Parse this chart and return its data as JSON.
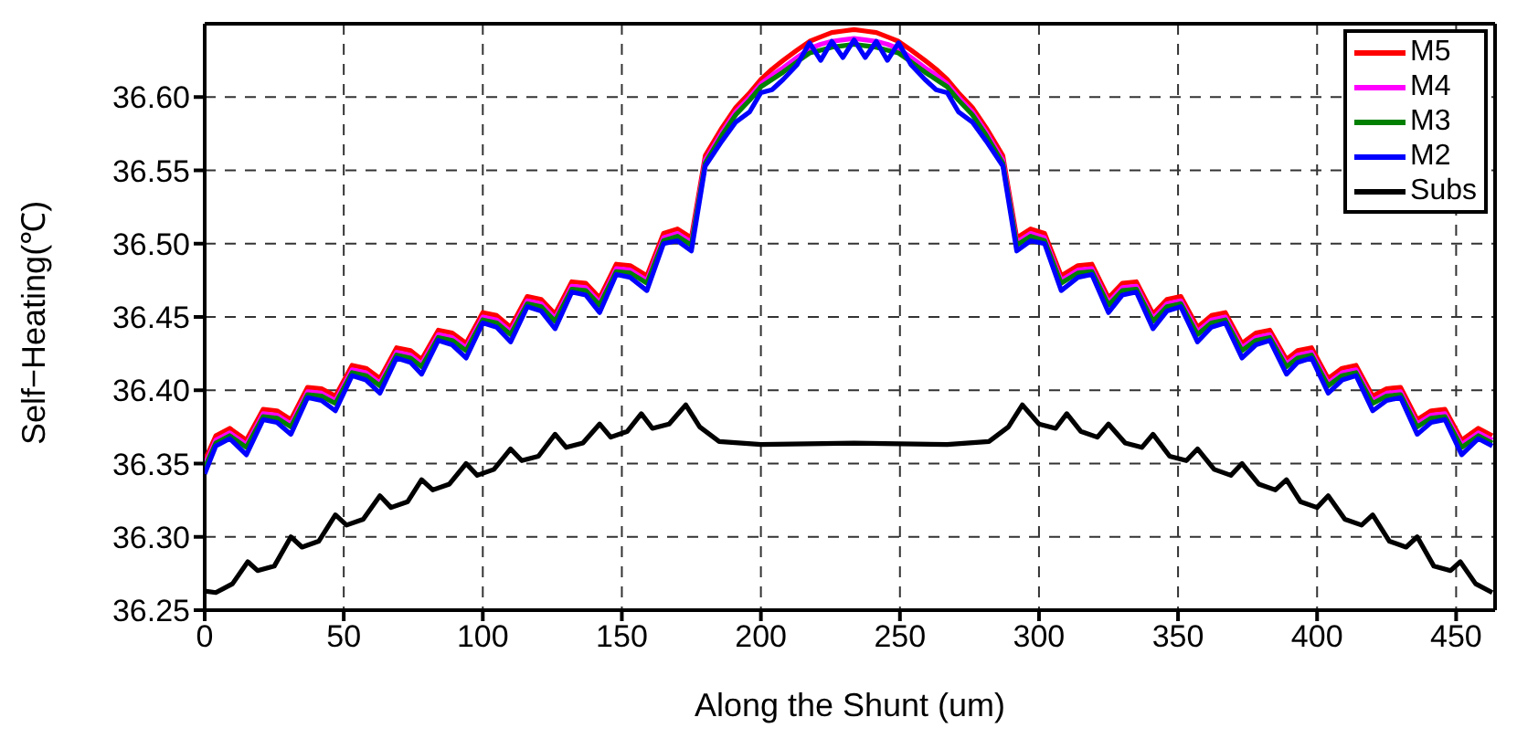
{
  "chart_data": {
    "type": "line",
    "xlabel": "Along the Shunt (um)",
    "ylabel": "Self−Heating(℃)",
    "xlim": [
      0,
      464
    ],
    "xticks": [
      0,
      50,
      100,
      150,
      200,
      250,
      300,
      350,
      400,
      450
    ],
    "ylim": [
      36.25,
      36.65
    ],
    "yticks": [
      36.25,
      {
        "value": 36.3,
        "label": "36.30"
      },
      36.35,
      {
        "value": 36.4,
        "label": "36.40"
      },
      36.45,
      {
        "value": 36.5,
        "label": "36.50"
      },
      36.55,
      {
        "value": 36.6,
        "label": "36.60"
      }
    ],
    "grid": true,
    "legend": "top right",
    "x": [
      0,
      4,
      9,
      15,
      21,
      26,
      31,
      37,
      42,
      47,
      53,
      58,
      63,
      69,
      74,
      78,
      84,
      89,
      94,
      100,
      105,
      110,
      116,
      121,
      126,
      132,
      137,
      142,
      148,
      153,
      159,
      165,
      170,
      175,
      180,
      186,
      191,
      196,
      200,
      204,
      208,
      213,
      217.5,
      221.5,
      225.5,
      229.5,
      233.5,
      237.5,
      241.5,
      245.5,
      249.5,
      254,
      259,
      263,
      267,
      271,
      276,
      281,
      287,
      292,
      297,
      302,
      308,
      314,
      319,
      325,
      330,
      335,
      341,
      346,
      351,
      357,
      362,
      367,
      373,
      378,
      383,
      389,
      393,
      398,
      404,
      409,
      414,
      420,
      425,
      430,
      436,
      441,
      446,
      452,
      458,
      463
    ],
    "series": [
      {
        "name": "M5",
        "color": "#ff0000",
        "values": [
          36.352,
          36.369,
          36.374,
          36.366,
          36.387,
          36.386,
          36.38,
          36.402,
          36.401,
          36.396,
          36.417,
          36.415,
          36.408,
          36.429,
          36.427,
          36.421,
          36.441,
          36.439,
          36.432,
          36.453,
          36.451,
          36.443,
          36.464,
          36.462,
          36.452,
          36.474,
          36.473,
          36.463,
          36.486,
          36.485,
          36.478,
          36.507,
          36.51,
          36.504,
          36.56,
          36.579,
          36.593,
          36.603,
          36.612,
          36.619,
          36.625,
          36.632,
          36.638,
          36.641,
          36.644,
          36.645,
          36.646,
          36.645,
          36.644,
          36.641,
          36.638,
          36.632,
          36.625,
          36.619,
          36.612,
          36.603,
          36.593,
          36.579,
          36.56,
          36.504,
          36.51,
          36.507,
          36.478,
          36.485,
          36.486,
          36.463,
          36.473,
          36.474,
          36.452,
          36.462,
          36.464,
          36.443,
          36.451,
          36.453,
          36.432,
          36.439,
          36.441,
          36.421,
          36.427,
          36.429,
          36.408,
          36.415,
          36.417,
          36.396,
          36.401,
          36.402,
          36.38,
          36.386,
          36.387,
          36.366,
          36.374,
          36.369
        ]
      },
      {
        "name": "M4",
        "color": "#ff00ff",
        "values": [
          36.349,
          36.366,
          36.371,
          36.363,
          36.384,
          36.383,
          36.377,
          36.399,
          36.398,
          36.393,
          36.414,
          36.412,
          36.405,
          36.426,
          36.424,
          36.418,
          36.438,
          36.436,
          36.429,
          36.45,
          36.448,
          36.44,
          36.461,
          36.459,
          36.449,
          36.471,
          36.47,
          36.46,
          36.483,
          36.482,
          36.475,
          36.504,
          36.507,
          36.501,
          36.557,
          36.576,
          36.59,
          36.6,
          36.609,
          36.615,
          36.62,
          36.627,
          36.633,
          36.636,
          36.638,
          36.639,
          36.64,
          36.639,
          36.638,
          36.636,
          36.633,
          36.627,
          36.62,
          36.615,
          36.609,
          36.6,
          36.59,
          36.576,
          36.557,
          36.501,
          36.507,
          36.504,
          36.475,
          36.482,
          36.483,
          36.46,
          36.47,
          36.471,
          36.449,
          36.459,
          36.461,
          36.44,
          36.448,
          36.45,
          36.429,
          36.436,
          36.438,
          36.418,
          36.424,
          36.426,
          36.405,
          36.412,
          36.414,
          36.393,
          36.398,
          36.399,
          36.377,
          36.383,
          36.384,
          36.363,
          36.371,
          36.366
        ]
      },
      {
        "name": "M3",
        "color": "#007f00",
        "values": [
          36.347,
          36.364,
          36.369,
          36.361,
          36.382,
          36.381,
          36.375,
          36.397,
          36.396,
          36.391,
          36.412,
          36.41,
          36.403,
          36.424,
          36.422,
          36.416,
          36.436,
          36.434,
          36.427,
          36.448,
          36.446,
          36.438,
          36.459,
          36.457,
          36.447,
          36.469,
          36.468,
          36.458,
          36.481,
          36.48,
          36.473,
          36.502,
          36.505,
          36.499,
          36.555,
          36.574,
          36.588,
          36.598,
          36.607,
          36.612,
          36.617,
          36.624,
          36.63,
          36.632,
          36.634,
          36.635,
          36.636,
          36.635,
          36.634,
          36.632,
          36.63,
          36.624,
          36.617,
          36.612,
          36.607,
          36.598,
          36.588,
          36.574,
          36.555,
          36.499,
          36.505,
          36.502,
          36.473,
          36.48,
          36.481,
          36.458,
          36.468,
          36.469,
          36.447,
          36.457,
          36.459,
          36.438,
          36.446,
          36.448,
          36.427,
          36.434,
          36.436,
          36.416,
          36.422,
          36.424,
          36.403,
          36.41,
          36.412,
          36.391,
          36.396,
          36.397,
          36.375,
          36.381,
          36.382,
          36.361,
          36.369,
          36.364
        ]
      },
      {
        "name": "M2",
        "color": "#0000ff",
        "values": [
          36.343,
          36.362,
          36.367,
          36.356,
          36.38,
          36.378,
          36.37,
          36.395,
          36.393,
          36.386,
          36.41,
          36.407,
          36.398,
          36.422,
          36.419,
          36.411,
          36.434,
          36.431,
          36.422,
          36.446,
          36.443,
          36.433,
          36.457,
          36.454,
          36.442,
          36.467,
          36.465,
          36.453,
          36.479,
          36.477,
          36.468,
          36.5,
          36.502,
          36.495,
          36.553,
          36.57,
          36.583,
          36.59,
          36.603,
          36.605,
          36.612,
          36.622,
          36.637,
          36.625,
          36.638,
          36.627,
          36.639,
          36.627,
          36.638,
          36.625,
          36.637,
          36.622,
          36.612,
          36.605,
          36.603,
          36.59,
          36.583,
          36.57,
          36.553,
          36.495,
          36.502,
          36.5,
          36.468,
          36.477,
          36.479,
          36.453,
          36.465,
          36.467,
          36.442,
          36.454,
          36.457,
          36.433,
          36.443,
          36.446,
          36.422,
          36.431,
          36.434,
          36.411,
          36.419,
          36.422,
          36.398,
          36.407,
          36.41,
          36.386,
          36.393,
          36.395,
          36.37,
          36.378,
          36.38,
          36.356,
          36.367,
          36.362
        ]
      },
      {
        "name": "Subs",
        "color": "#000000",
        "x": [
          0,
          4,
          10,
          15.5,
          19,
          25,
          31,
          35,
          41,
          47,
          51,
          57,
          63,
          67,
          73,
          78,
          82,
          88,
          94,
          98,
          104,
          110,
          114,
          120,
          126,
          130,
          136,
          142,
          146,
          152,
          157,
          161,
          167,
          173,
          178,
          185,
          200,
          233.5,
          267,
          282,
          289,
          294,
          300,
          306,
          310,
          315,
          321,
          325,
          331,
          337,
          341,
          347,
          353,
          357,
          363,
          369,
          373,
          379,
          385,
          389,
          394,
          400,
          404,
          410,
          416,
          420,
          426,
          432,
          436,
          442,
          448,
          451.5,
          457,
          463
        ],
        "values": [
          36.263,
          36.262,
          36.268,
          36.283,
          36.277,
          36.28,
          36.3,
          36.293,
          36.297,
          36.315,
          36.308,
          36.312,
          36.328,
          36.32,
          36.324,
          36.339,
          36.332,
          36.336,
          36.35,
          36.342,
          36.346,
          36.36,
          36.352,
          36.355,
          36.37,
          36.361,
          36.364,
          36.377,
          36.368,
          36.372,
          36.384,
          36.374,
          36.377,
          36.39,
          36.375,
          36.365,
          36.363,
          36.364,
          36.363,
          36.365,
          36.375,
          36.39,
          36.377,
          36.374,
          36.384,
          36.372,
          36.368,
          36.377,
          36.364,
          36.361,
          36.37,
          36.355,
          36.352,
          36.36,
          36.346,
          36.342,
          36.35,
          36.336,
          36.332,
          36.339,
          36.324,
          36.32,
          36.328,
          36.312,
          36.308,
          36.315,
          36.297,
          36.293,
          36.3,
          36.28,
          36.277,
          36.283,
          36.268,
          36.262
        ]
      }
    ]
  }
}
